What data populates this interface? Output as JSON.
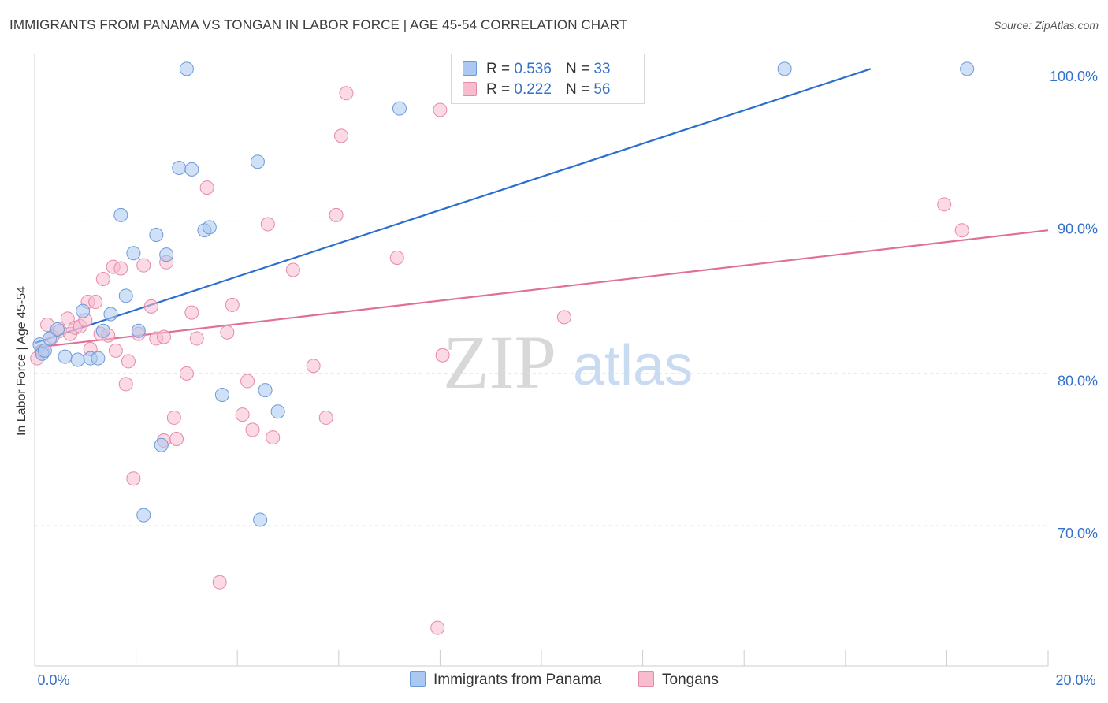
{
  "title": "IMMIGRANTS FROM PANAMA VS TONGAN IN LABOR FORCE | AGE 45-54 CORRELATION CHART",
  "source": "Source: ZipAtlas.com",
  "watermark": {
    "zip": "ZIP",
    "atlas": "atlas"
  },
  "legend": {
    "r_label": "R =",
    "n_label": "N =",
    "entries": [
      {
        "r": "0.536",
        "n": "33"
      },
      {
        "r": "0.222",
        "n": "56"
      }
    ]
  },
  "colors": {
    "panama_fill": "#aac8f0",
    "panama_stroke": "#6b9bd8",
    "panama_line": "#2a6fcf",
    "tongan_fill": "#f8bccf",
    "tongan_stroke": "#e58aa8",
    "tongan_line": "#e0709a",
    "grid": "#dddddd",
    "axis_text": "#3570c8"
  },
  "chart_data": {
    "type": "scatter",
    "title": "IMMIGRANTS FROM PANAMA VS TONGAN IN LABOR FORCE | AGE 45-54 CORRELATION CHART",
    "xlabel": "",
    "ylabel": "In Labor Force | Age 45-54",
    "xlim": [
      0,
      20
    ],
    "ylim": [
      61.3,
      101.5
    ],
    "x_tick_labels": [
      {
        "value": 0,
        "label": "0.0%"
      },
      {
        "value": 20,
        "label": "20.0%"
      }
    ],
    "y_tick_labels": [
      {
        "value": 100,
        "label": "100.0%"
      },
      {
        "value": 90,
        "label": "90.0%"
      },
      {
        "value": 80,
        "label": "80.0%"
      },
      {
        "value": 70,
        "label": "70.0%"
      }
    ],
    "y_gridlines": [
      100.5,
      90.5,
      80.5,
      70.5
    ],
    "x_minor_ticks": [
      2,
      4,
      6,
      8,
      10,
      12,
      14,
      16,
      18,
      20
    ],
    "series": [
      {
        "name": "Immigrants from Panama",
        "R": 0.536,
        "N": 33,
        "trend": {
          "x": [
            0,
            16.5
          ],
          "y": [
            82.5,
            100.5
          ]
        },
        "points": [
          [
            0.1,
            82.4
          ],
          [
            0.15,
            81.8
          ],
          [
            0.2,
            82.0
          ],
          [
            0.3,
            82.8
          ],
          [
            0.45,
            83.4
          ],
          [
            0.6,
            81.6
          ],
          [
            0.85,
            81.4
          ],
          [
            0.95,
            84.6
          ],
          [
            1.1,
            81.5
          ],
          [
            1.25,
            81.5
          ],
          [
            1.35,
            83.3
          ],
          [
            1.5,
            84.4
          ],
          [
            1.7,
            90.9
          ],
          [
            1.8,
            85.6
          ],
          [
            1.95,
            88.4
          ],
          [
            2.05,
            83.3
          ],
          [
            2.15,
            71.2
          ],
          [
            2.4,
            89.6
          ],
          [
            2.5,
            75.8
          ],
          [
            2.6,
            88.3
          ],
          [
            2.85,
            94.0
          ],
          [
            3.0,
            100.5
          ],
          [
            3.1,
            93.9
          ],
          [
            3.35,
            89.9
          ],
          [
            3.45,
            90.1
          ],
          [
            3.7,
            79.1
          ],
          [
            4.4,
            94.4
          ],
          [
            4.45,
            70.9
          ],
          [
            4.55,
            79.4
          ],
          [
            4.8,
            78.0
          ],
          [
            7.2,
            97.9
          ],
          [
            14.8,
            100.5
          ],
          [
            18.4,
            100.5
          ]
        ]
      },
      {
        "name": "Tongans",
        "R": 0.222,
        "N": 56,
        "trend": {
          "x": [
            0,
            20
          ],
          "y": [
            82.2,
            89.9
          ]
        },
        "points": [
          [
            0.05,
            81.5
          ],
          [
            0.15,
            82.0
          ],
          [
            0.25,
            83.7
          ],
          [
            0.35,
            82.9
          ],
          [
            0.5,
            83.3
          ],
          [
            0.65,
            84.1
          ],
          [
            0.7,
            83.1
          ],
          [
            0.8,
            83.5
          ],
          [
            0.9,
            83.6
          ],
          [
            1.0,
            84.0
          ],
          [
            1.05,
            85.2
          ],
          [
            1.1,
            82.1
          ],
          [
            1.2,
            85.2
          ],
          [
            1.3,
            83.1
          ],
          [
            1.35,
            86.7
          ],
          [
            1.45,
            83.0
          ],
          [
            1.55,
            87.5
          ],
          [
            1.6,
            82.0
          ],
          [
            1.7,
            87.4
          ],
          [
            1.8,
            79.8
          ],
          [
            1.85,
            81.3
          ],
          [
            1.95,
            73.6
          ],
          [
            2.05,
            83.1
          ],
          [
            2.15,
            87.6
          ],
          [
            2.3,
            84.9
          ],
          [
            2.4,
            82.8
          ],
          [
            2.55,
            82.9
          ],
          [
            2.6,
            87.8
          ],
          [
            2.55,
            76.1
          ],
          [
            2.75,
            77.6
          ],
          [
            2.8,
            76.2
          ],
          [
            3.0,
            80.5
          ],
          [
            3.1,
            84.5
          ],
          [
            3.2,
            82.8
          ],
          [
            3.4,
            92.7
          ],
          [
            3.65,
            66.8
          ],
          [
            3.8,
            83.2
          ],
          [
            3.9,
            85.0
          ],
          [
            4.1,
            77.8
          ],
          [
            4.2,
            80.0
          ],
          [
            4.3,
            76.8
          ],
          [
            4.6,
            90.3
          ],
          [
            4.7,
            76.3
          ],
          [
            5.1,
            87.3
          ],
          [
            5.5,
            81.0
          ],
          [
            5.75,
            77.6
          ],
          [
            5.95,
            90.9
          ],
          [
            6.05,
            96.1
          ],
          [
            6.15,
            98.9
          ],
          [
            7.15,
            88.1
          ],
          [
            8.0,
            97.8
          ],
          [
            8.05,
            81.7
          ],
          [
            7.95,
            63.8
          ],
          [
            10.45,
            84.2
          ],
          [
            17.95,
            91.6
          ],
          [
            18.3,
            89.9
          ]
        ]
      }
    ]
  },
  "bottom_legend": {
    "items": [
      {
        "label": "Immigrants from Panama"
      },
      {
        "label": "Tongans"
      }
    ]
  }
}
